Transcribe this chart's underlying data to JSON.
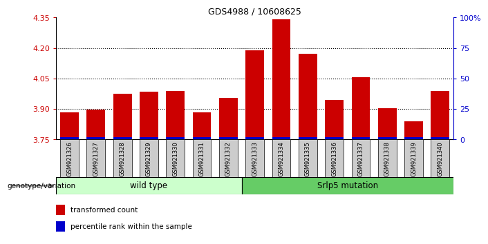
{
  "title": "GDS4988 / 10608625",
  "samples": [
    "GSM921326",
    "GSM921327",
    "GSM921328",
    "GSM921329",
    "GSM921330",
    "GSM921331",
    "GSM921332",
    "GSM921333",
    "GSM921334",
    "GSM921335",
    "GSM921336",
    "GSM921337",
    "GSM921338",
    "GSM921339",
    "GSM921340"
  ],
  "transformed_count": [
    3.885,
    3.898,
    3.975,
    3.985,
    3.99,
    3.885,
    3.955,
    4.19,
    4.34,
    4.17,
    3.945,
    4.055,
    3.905,
    3.84,
    3.99
  ],
  "percentile_rank": [
    3,
    4,
    4,
    5,
    5,
    4,
    4,
    4,
    5,
    4,
    4,
    5,
    4,
    4,
    4
  ],
  "bar_base": 3.75,
  "ylim": [
    3.75,
    4.35
  ],
  "yticks_left": [
    3.75,
    3.9,
    4.05,
    4.2,
    4.35
  ],
  "yticks_right_vals": [
    0,
    25,
    50,
    75,
    100
  ],
  "yticks_right_labels": [
    "0",
    "25",
    "50",
    "75",
    "100%"
  ],
  "red_color": "#cc0000",
  "blue_color": "#0000cc",
  "bar_width": 0.7,
  "wild_type_count": 7,
  "wild_type_label": "wild type",
  "mutation_label": "Srlp5 mutation",
  "genotype_label": "genotype/variation",
  "legend_red": "transformed count",
  "legend_blue": "percentile rank within the sample",
  "wild_type_bg": "#ccffcc",
  "mutation_bg": "#66cc66",
  "tick_bg": "#cccccc",
  "gridline_y": [
    3.9,
    4.05,
    4.2
  ],
  "blue_bar_height": 0.012
}
